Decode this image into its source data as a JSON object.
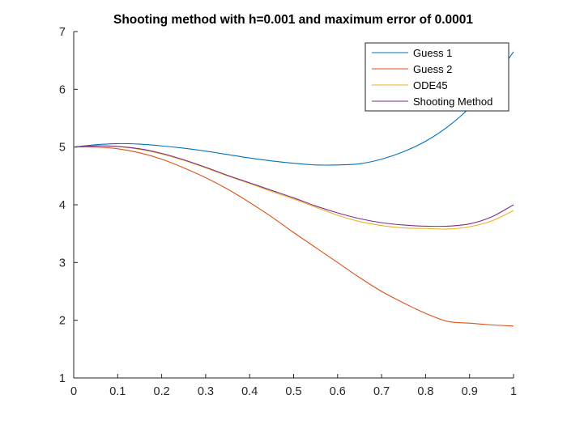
{
  "figure": {
    "title": "Shooting method with h=0.001 and maximum error of 0.0001"
  },
  "chart_data": {
    "type": "line",
    "title": "Shooting method with h=0.001 and maximum error of 0.0001",
    "xlabel": "",
    "ylabel": "",
    "xlim": [
      0,
      1
    ],
    "ylim": [
      1,
      7
    ],
    "xticks": [
      0,
      0.1,
      0.2,
      0.3,
      0.4,
      0.5,
      0.6,
      0.7,
      0.8,
      0.9,
      1
    ],
    "xtick_labels": [
      "0",
      "0.1",
      "0.2",
      "0.3",
      "0.4",
      "0.5",
      "0.6",
      "0.7",
      "0.8",
      "0.9",
      "1"
    ],
    "yticks": [
      1,
      2,
      3,
      4,
      5,
      6,
      7
    ],
    "ytick_labels": [
      "1",
      "2",
      "3",
      "4",
      "5",
      "6",
      "7"
    ],
    "grid": false,
    "legend_position": "top-right",
    "x": [
      0,
      0.05,
      0.1,
      0.15,
      0.2,
      0.25,
      0.3,
      0.35,
      0.4,
      0.45,
      0.5,
      0.55,
      0.6,
      0.65,
      0.7,
      0.75,
      0.8,
      0.85,
      0.9,
      0.95,
      1.0
    ],
    "series": [
      {
        "name": "Guess 1",
        "color": "#0072BD",
        "values": [
          5.0,
          5.04,
          5.06,
          5.05,
          5.02,
          4.98,
          4.93,
          4.87,
          4.81,
          4.76,
          4.72,
          4.69,
          4.69,
          4.71,
          4.79,
          4.92,
          5.1,
          5.35,
          5.68,
          6.12,
          6.65
        ]
      },
      {
        "name": "Guess 2",
        "color": "#D95319",
        "values": [
          5.0,
          5.0,
          4.97,
          4.9,
          4.79,
          4.64,
          4.47,
          4.27,
          4.04,
          3.79,
          3.52,
          3.26,
          3.0,
          2.74,
          2.5,
          2.3,
          2.12,
          1.98,
          1.95,
          1.92,
          1.9
        ]
      },
      {
        "name": "ODE45",
        "color": "#EDB120",
        "values": [
          5.0,
          5.02,
          5.01,
          4.96,
          4.88,
          4.77,
          4.64,
          4.5,
          4.37,
          4.23,
          4.1,
          3.96,
          3.82,
          3.71,
          3.64,
          3.6,
          3.59,
          3.58,
          3.62,
          3.72,
          3.9
        ]
      },
      {
        "name": "Shooting Method",
        "color": "#7E2F8E",
        "values": [
          5.0,
          5.02,
          5.01,
          4.97,
          4.89,
          4.78,
          4.65,
          4.51,
          4.38,
          4.25,
          4.12,
          3.98,
          3.86,
          3.76,
          3.69,
          3.65,
          3.63,
          3.63,
          3.67,
          3.79,
          4.0
        ]
      }
    ]
  }
}
